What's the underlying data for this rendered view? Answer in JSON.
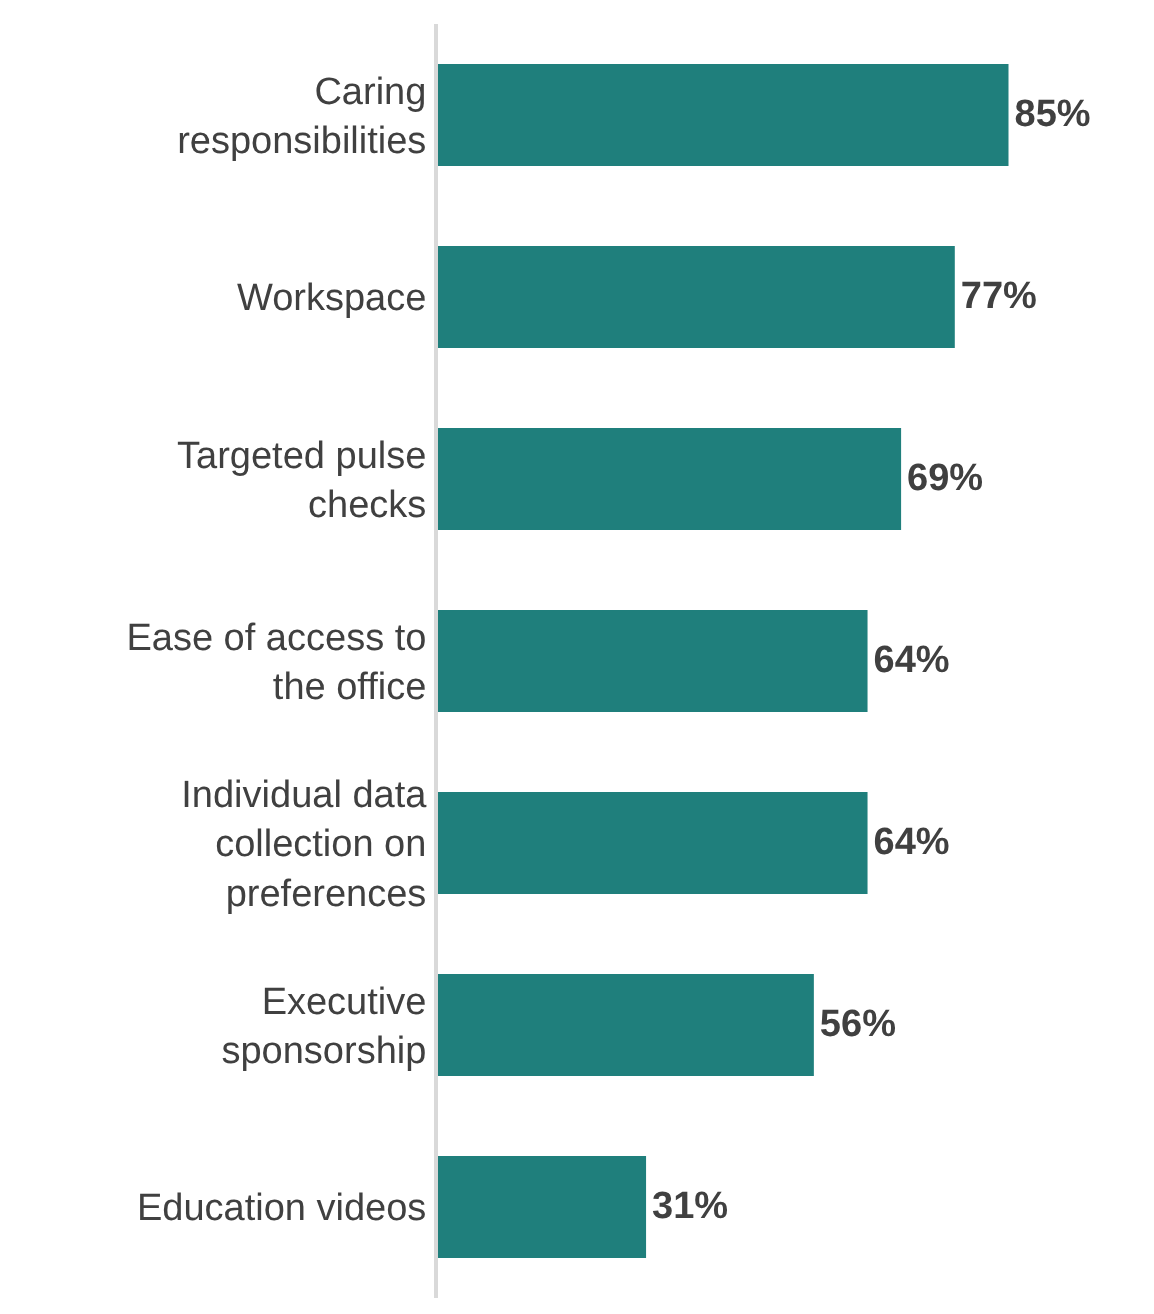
{
  "chart_data": {
    "type": "bar",
    "orientation": "horizontal",
    "categories": [
      "Caring responsibilities",
      "Workspace",
      "Targeted pulse checks",
      "Ease of access to the office",
      "Individual data collection on preferences",
      "Executive sponsorship",
      "Education videos"
    ],
    "values": [
      85,
      77,
      69,
      64,
      64,
      56,
      31
    ],
    "value_labels": [
      "85%",
      "77%",
      "69%",
      "64%",
      "64%",
      "56%",
      "31%"
    ],
    "color": "#1f7f7c"
  }
}
